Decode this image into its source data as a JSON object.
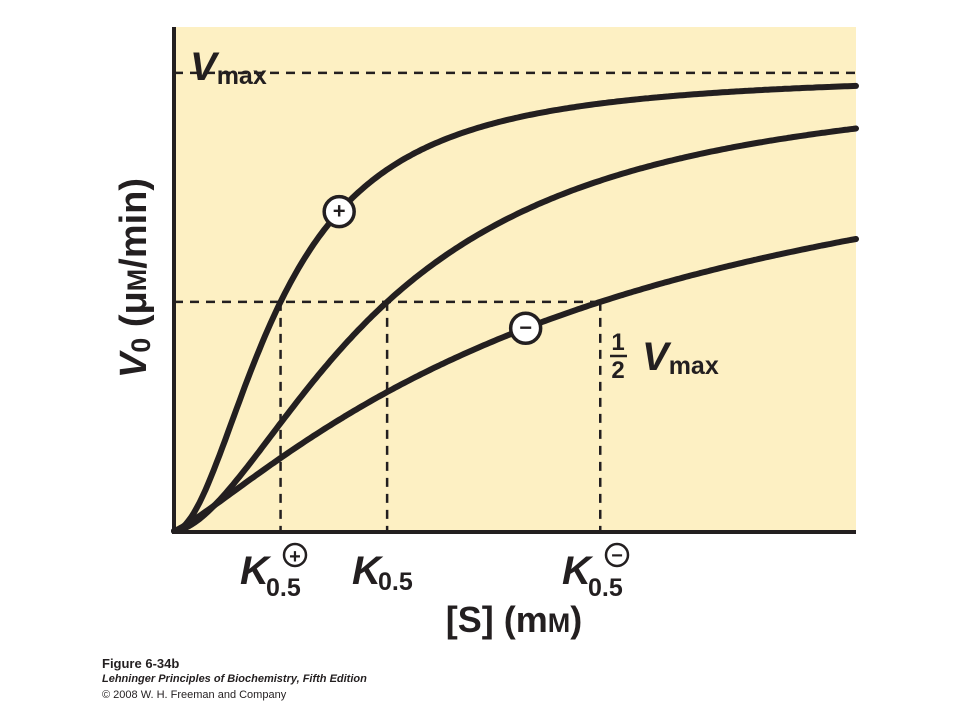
{
  "chart_data": {
    "type": "line",
    "xlabel": "[S] (mM)",
    "ylabel": "V0 (μM/min)",
    "y_ref_lines": [
      {
        "label": "Vmax",
        "value": 1.0
      },
      {
        "label": "½ Vmax",
        "value": 0.5
      }
    ],
    "x_ref_lines": [
      {
        "label": "K0.5 (+)",
        "value": 1.0
      },
      {
        "label": "K0.5",
        "value": 2.0
      },
      {
        "label": "K0.5 (−)",
        "value": 4.0
      }
    ],
    "series": [
      {
        "marker": "+",
        "color": "#231f20",
        "k": 1.0,
        "hill": 1.9,
        "x": [
          0,
          0.5,
          1.0,
          1.5,
          2.0,
          3.0,
          4.0,
          5.0,
          6.4
        ],
        "y": [
          0,
          0.21,
          0.5,
          0.68,
          0.78,
          0.88,
          0.93,
          0.95,
          0.97
        ]
      },
      {
        "k": 2.0,
        "hill": 1.7,
        "x": [
          0,
          0.5,
          1.0,
          1.5,
          2.0,
          3.0,
          4.0,
          5.0,
          6.4
        ],
        "y": [
          0,
          0.09,
          0.24,
          0.38,
          0.5,
          0.67,
          0.76,
          0.83,
          0.88
        ]
      },
      {
        "marker": "−",
        "k": 4.0,
        "hill": 1.2,
        "x": [
          0,
          0.5,
          1.0,
          1.5,
          2.0,
          3.0,
          4.0,
          5.0,
          6.4
        ],
        "y": [
          0,
          0.07,
          0.14,
          0.23,
          0.3,
          0.42,
          0.5,
          0.57,
          0.64
        ]
      }
    ],
    "xlim": [
      0,
      6.4
    ],
    "ylim": [
      0,
      1.1
    ],
    "grid": false,
    "background": "#fdf0c3",
    "line_color": "#231f20"
  },
  "labels": {
    "vmax": {
      "main": "V",
      "sub": "max"
    },
    "half_vmax": {
      "num": "1",
      "den": "2",
      "main": "V",
      "sub": "max"
    },
    "k_plus": {
      "main": "K",
      "sub": "0.5",
      "sup": "+"
    },
    "k_mid": {
      "main": "K",
      "sub": "0.5"
    },
    "k_minus": {
      "main": "K",
      "sub": "0.5",
      "sup": "−"
    },
    "ylabel_parts": {
      "v": "V",
      "zero": "0",
      "unit": " (μ",
      "m": "M",
      "rest": "/min)"
    },
    "xlabel_parts": {
      "s": "[S] (m",
      "m": "M",
      "close": ")"
    }
  },
  "caption": {
    "figure": "Figure 6-34b",
    "book": "Lehninger Principles of Biochemistry, Fifth Edition",
    "copyright": "© 2008 W. H. Freeman and Company"
  }
}
